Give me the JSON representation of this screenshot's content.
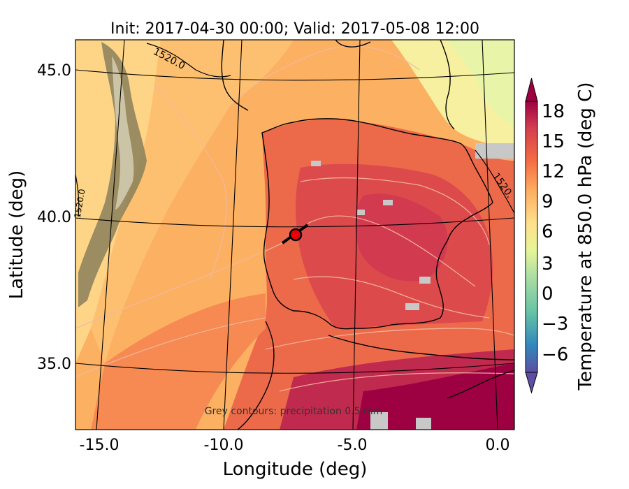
{
  "title": "Init: 2017-04-30 00:00; Valid: 2017-05-08 12:00",
  "xlabel": "Longitude (deg)",
  "ylabel": "Latitude (deg)",
  "x_ticks": [
    "-15.0",
    "-10.0",
    "-5.0",
    "0.0"
  ],
  "y_ticks": [
    "45.0",
    "40.0",
    "35.0"
  ],
  "annotation": "Grey contours: precipitation     0.5 mm",
  "contour_labels": [
    "1520.0",
    "1520.",
    "1520.0"
  ],
  "colorbar": {
    "label": "Temperature at 850.0 hPa (deg C)",
    "ticks": [
      "18",
      "15",
      "12",
      "9",
      "6",
      "3",
      "0",
      "−3",
      "−6"
    ],
    "range": [
      -8,
      21
    ],
    "extend": "both",
    "colormap": [
      "#5e4fa2",
      "#3288bd",
      "#66c2a5",
      "#abdda4",
      "#e6f598",
      "#fee08b",
      "#fdae61",
      "#f46d43",
      "#d53e4f",
      "#9e0142"
    ]
  },
  "marker": {
    "label": "location",
    "lon": -7.6,
    "lat": 39.3,
    "color": "#e8000b"
  },
  "colors": {
    "ocean_warm": "#fdb365",
    "ocean_mid": "#fdc574",
    "ocean_cool": "#fee592",
    "land_warm": "#e2504a",
    "hot_south": "#a2144a",
    "north_cool": "#eef5a6",
    "terrain": "#8a7f5a",
    "precip_grey": "#c8c8c8"
  }
}
